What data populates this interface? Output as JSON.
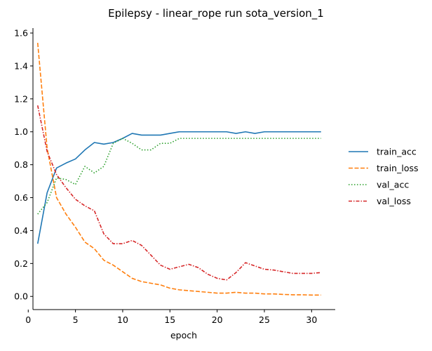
{
  "chart_data": {
    "type": "line",
    "title": "Epilepsy - linear_rope run sota_version_1",
    "xlabel": "epoch",
    "ylabel": "",
    "xlim": [
      0.5,
      32.5
    ],
    "ylim": [
      -0.08,
      1.63
    ],
    "xticks": [
      0,
      5,
      10,
      15,
      20,
      25,
      30
    ],
    "yticks": [
      0.0,
      0.2,
      0.4,
      0.6,
      0.8,
      1.0,
      1.2,
      1.4,
      1.6
    ],
    "grid": false,
    "legend_position": "right",
    "x": [
      1,
      2,
      3,
      4,
      5,
      6,
      7,
      8,
      9,
      10,
      11,
      12,
      13,
      14,
      15,
      16,
      17,
      18,
      19,
      20,
      21,
      22,
      23,
      24,
      25,
      26,
      27,
      28,
      29,
      30,
      31
    ],
    "series": [
      {
        "name": "train_acc",
        "color": "#1f77b4",
        "style": "solid",
        "values": [
          0.32,
          0.63,
          0.78,
          0.81,
          0.835,
          0.89,
          0.935,
          0.925,
          0.935,
          0.96,
          0.99,
          0.98,
          0.98,
          0.98,
          0.99,
          1.0,
          1.0,
          1.0,
          1.0,
          1.0,
          1.0,
          0.99,
          1.0,
          0.99,
          1.0,
          1.0,
          1.0,
          1.0,
          1.0,
          1.0,
          1.0
        ]
      },
      {
        "name": "train_loss",
        "color": "#ff7f0e",
        "style": "dashed",
        "values": [
          1.54,
          0.9,
          0.6,
          0.5,
          0.42,
          0.33,
          0.29,
          0.22,
          0.19,
          0.15,
          0.11,
          0.09,
          0.08,
          0.07,
          0.05,
          0.04,
          0.035,
          0.03,
          0.025,
          0.02,
          0.02,
          0.025,
          0.02,
          0.02,
          0.015,
          0.015,
          0.012,
          0.01,
          0.01,
          0.008,
          0.008
        ]
      },
      {
        "name": "val_acc",
        "color": "#2ca02c",
        "style": "dotted",
        "values": [
          0.5,
          0.57,
          0.72,
          0.71,
          0.68,
          0.79,
          0.75,
          0.79,
          0.93,
          0.96,
          0.93,
          0.89,
          0.89,
          0.93,
          0.93,
          0.96,
          0.96,
          0.96,
          0.96,
          0.96,
          0.96,
          0.96,
          0.96,
          0.96,
          0.96,
          0.96,
          0.96,
          0.96,
          0.96,
          0.96,
          0.96
        ]
      },
      {
        "name": "val_loss",
        "color": "#d62728",
        "style": "dashdot",
        "values": [
          1.16,
          0.88,
          0.74,
          0.66,
          0.59,
          0.55,
          0.52,
          0.38,
          0.32,
          0.32,
          0.34,
          0.31,
          0.25,
          0.19,
          0.165,
          0.18,
          0.195,
          0.175,
          0.135,
          0.11,
          0.1,
          0.145,
          0.205,
          0.185,
          0.165,
          0.16,
          0.15,
          0.14,
          0.14,
          0.14,
          0.145
        ]
      }
    ]
  }
}
